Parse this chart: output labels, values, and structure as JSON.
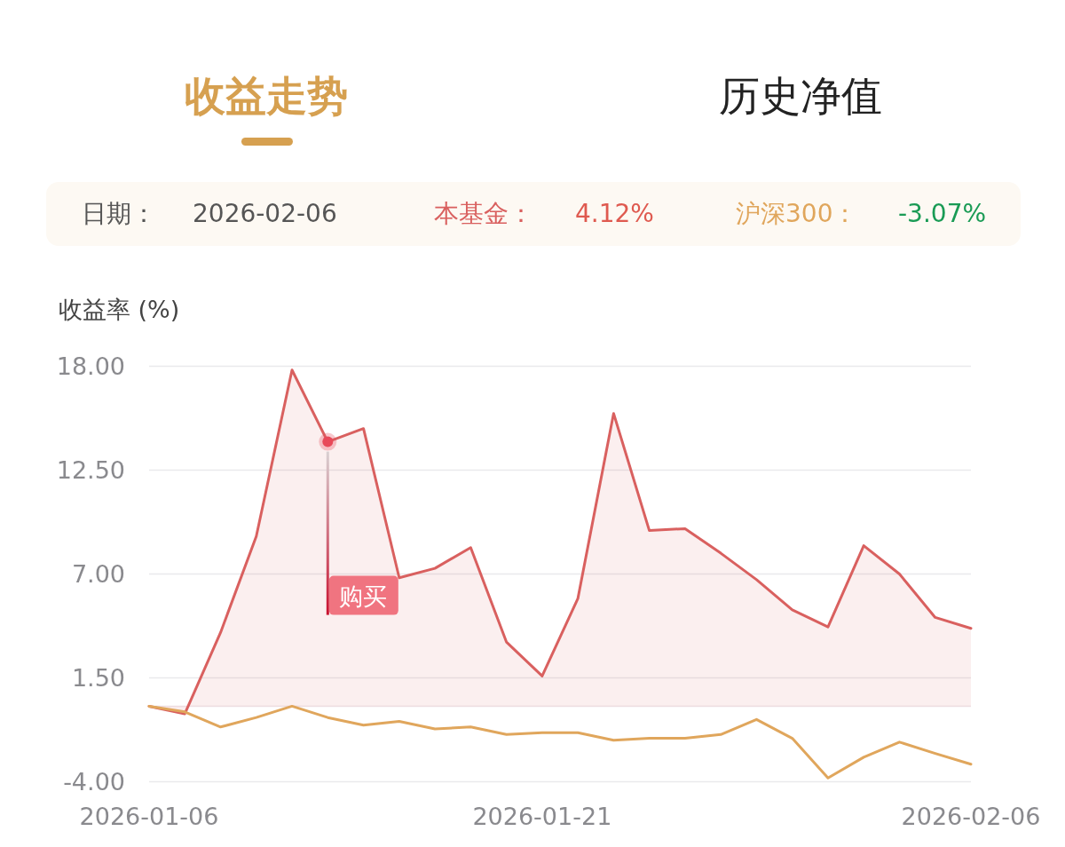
{
  "chart_data": {
    "type": "line",
    "title": "收益走势",
    "ylabel": "收益率 (%)",
    "categories": [
      "2026-01-06",
      null,
      null,
      null,
      null,
      null,
      null,
      null,
      null,
      null,
      null,
      "2026-01-21",
      null,
      null,
      null,
      null,
      null,
      null,
      null,
      null,
      null,
      null,
      null,
      "2026-02-06"
    ],
    "series": [
      {
        "name": "本基金：",
        "type": "area",
        "color": "#d9605f",
        "values": [
          0,
          -0.4,
          3.9,
          9.0,
          17.8,
          14.0,
          14.7,
          6.8,
          7.3,
          8.4,
          3.4,
          1.6,
          5.7,
          15.5,
          9.3,
          9.4,
          8.1,
          6.7,
          5.1,
          4.2,
          8.5,
          7.0,
          4.7,
          4.12
        ]
      },
      {
        "name": "沪深300：",
        "color": "#e0a65c",
        "values": [
          0,
          -0.3,
          -1.1,
          -0.6,
          0,
          -0.6,
          -1.0,
          -0.8,
          -1.2,
          -1.1,
          -1.5,
          -1.4,
          -1.4,
          -1.8,
          -1.7,
          -1.7,
          -1.5,
          -0.7,
          -1.7,
          -3.8,
          -2.7,
          -1.9,
          -2.5,
          -3.07
        ]
      },
      {
        "type": "scatter",
        "color": "#e84a5a",
        "values": [
          null,
          null,
          null,
          null,
          null,
          14.0,
          null,
          null,
          null,
          null,
          null,
          null,
          null,
          null,
          null,
          null,
          null,
          null,
          null,
          null,
          null,
          null,
          null,
          null
        ]
      }
    ],
    "ylim": [
      -4,
      18
    ],
    "yticks": [
      {
        "value": -4,
        "label": "-4.00"
      },
      {
        "value": 1.5,
        "label": "1.50"
      },
      {
        "value": 7,
        "label": "7.00"
      },
      {
        "value": 12.5,
        "label": "12.50"
      },
      {
        "value": 18,
        "label": "18.00"
      }
    ],
    "grid": "y",
    "ref_lines": [
      {
        "axis": "y",
        "value": 0,
        "color": "#efe4e8"
      }
    ],
    "annotations": [
      "历史净值",
      "日期：",
      "2026-02-06",
      "4.12%",
      "-3.07%",
      "购买"
    ]
  }
}
